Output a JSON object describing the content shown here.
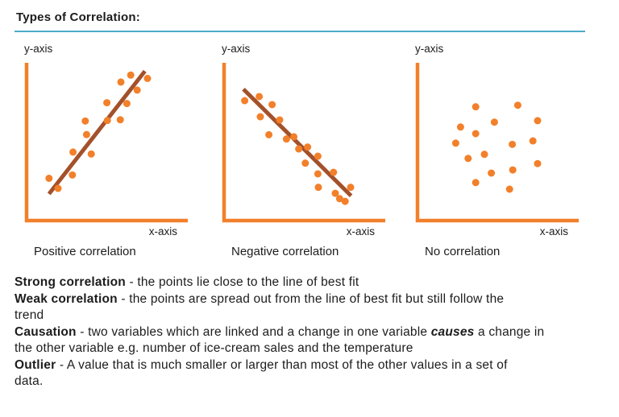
{
  "page": {
    "title": "Types of Correlation:"
  },
  "colors": {
    "accent_rule": "#4BACC6",
    "axis": "#F2802A",
    "dot": "#F2802A",
    "trend_line": "#A3512B",
    "text": "#1C1C1C"
  },
  "chart_data": [
    {
      "type": "scatter",
      "title": "Positive correlation",
      "xlabel": "x-axis",
      "ylabel": "y-axis",
      "x_range": [
        0,
        100
      ],
      "y_range": [
        0,
        100
      ],
      "grid": false,
      "points": [
        [
          13.9,
          26.8
        ],
        [
          19.5,
          20.4
        ],
        [
          28.4,
          28.9
        ],
        [
          28.8,
          43.4
        ],
        [
          36.4,
          63.1
        ],
        [
          37.2,
          54.5
        ],
        [
          40.1,
          42.2
        ],
        [
          49.8,
          74.7
        ],
        [
          50.1,
          63.4
        ],
        [
          58.1,
          63.9
        ],
        [
          58.5,
          87.8
        ],
        [
          62.2,
          74.2
        ],
        [
          64.6,
          92.2
        ],
        [
          68.6,
          82.7
        ],
        [
          75.0,
          90.1
        ]
      ],
      "trend_line": {
        "from": [
          13.9,
          16.9
        ],
        "to": [
          73.4,
          94.7
        ]
      }
    },
    {
      "type": "scatter",
      "title": "Negative correlation",
      "xlabel": "x-axis",
      "ylabel": "y-axis",
      "x_range": [
        0,
        100
      ],
      "y_range": [
        0,
        100
      ],
      "grid": false,
      "points": [
        [
          12.8,
          76.0
        ],
        [
          21.8,
          78.6
        ],
        [
          22.5,
          65.8
        ],
        [
          27.8,
          54.4
        ],
        [
          29.8,
          73.5
        ],
        [
          34.5,
          63.8
        ],
        [
          38.7,
          51.7
        ],
        [
          43.3,
          53.1
        ],
        [
          46.3,
          45.4
        ],
        [
          50.4,
          36.4
        ],
        [
          51.8,
          46.6
        ],
        [
          58.2,
          40.8
        ],
        [
          58.2,
          29.6
        ],
        [
          58.5,
          21.1
        ],
        [
          67.9,
          30.6
        ],
        [
          69.0,
          17.3
        ],
        [
          71.7,
          13.9
        ],
        [
          75.1,
          12.2
        ],
        [
          78.5,
          21.1
        ]
      ],
      "trend_line": {
        "from": [
          12.0,
          83.3
        ],
        "to": [
          78.8,
          15.7
        ]
      }
    },
    {
      "type": "scatter",
      "title": "No correlation",
      "xlabel": "x-axis",
      "ylabel": "y-axis",
      "x_range": [
        0,
        100
      ],
      "y_range": [
        0,
        100
      ],
      "grid": false,
      "points": [
        [
          36.1,
          72.1
        ],
        [
          62.2,
          73.1
        ],
        [
          47.7,
          62.4
        ],
        [
          74.5,
          63.3
        ],
        [
          26.7,
          59.3
        ],
        [
          36.1,
          55.1
        ],
        [
          23.7,
          49.1
        ],
        [
          58.8,
          48.3
        ],
        [
          71.6,
          50.5
        ],
        [
          41.5,
          42.0
        ],
        [
          31.4,
          39.4
        ],
        [
          74.5,
          36.1
        ],
        [
          59.1,
          32.1
        ],
        [
          45.8,
          30.1
        ],
        [
          36.1,
          24.1
        ],
        [
          57.1,
          19.9
        ]
      ],
      "trend_line": null
    }
  ],
  "definitions": [
    {
      "id": "strong-correlation",
      "segments": [
        {
          "text": "Strong correlation",
          "bold": true
        },
        {
          "text": " - the points lie close to the line of best fit"
        }
      ]
    },
    {
      "id": "weak-correlation",
      "segments": [
        {
          "text": "Weak correlation",
          "bold": true
        },
        {
          "text": " - the points are spread out from the line of best fit but still follow the"
        },
        {
          "text": "trend",
          "break_before": true
        }
      ]
    },
    {
      "id": "causation",
      "segments": [
        {
          "text": "Causation",
          "bold": true
        },
        {
          "text": " - two variables which are linked and a change in one variable "
        },
        {
          "text": "causes",
          "bold": true,
          "italic": true
        },
        {
          "text": " a change in"
        },
        {
          "text": "the other variable e.g. number of ice-cream sales and the temperature",
          "break_before": true
        }
      ]
    },
    {
      "id": "outlier",
      "segments": [
        {
          "text": "Outlier",
          "bold": true
        },
        {
          "text": " - A value that is much smaller or larger than most of the other values in a set of"
        },
        {
          "text": "data.",
          "break_before": true
        }
      ]
    }
  ]
}
